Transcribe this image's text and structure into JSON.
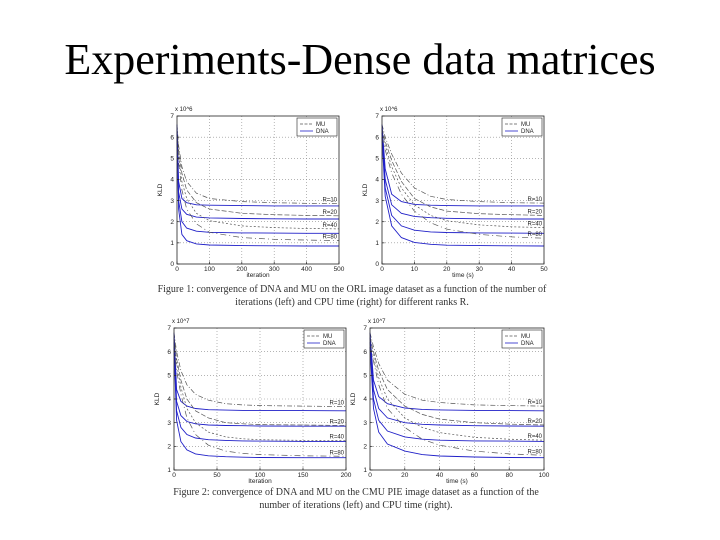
{
  "slide": {
    "title": "Experiments-Dense data matrices"
  },
  "captions": {
    "figure1": "Figure 1: convergence of DNA and MU on the ORL image dataset as a function of the number of iterations (left) and CPU time (right) for different ranks R.",
    "figure2": "Figure 2: convergence of DNA and MU on the CMU PIE image dataset as a function of the number of iterations (left) and CPU time (right)."
  },
  "colors": {
    "mu": "#555555",
    "dna": "#2020c8",
    "axis": "#222222",
    "grid": "#888888"
  },
  "chart_data": [
    {
      "id": "orl-iter",
      "type": "line",
      "dataset": "ORL",
      "xlabel": "iteration",
      "ylabel": "KLD",
      "yscale": "x 10^6",
      "xlim": [
        0,
        500
      ],
      "ylim": [
        0,
        7
      ],
      "xticks": [
        0,
        100,
        200,
        300,
        400,
        500
      ],
      "yticks": [
        0,
        1,
        2,
        3,
        4,
        5,
        6,
        7
      ],
      "legend": [
        "MU",
        "DNA"
      ],
      "ranks": [
        "R=10",
        "R=20",
        "R=40",
        "R=80"
      ],
      "series": [
        {
          "name": "MU R=10",
          "x": [
            0,
            5,
            15,
            30,
            60,
            100,
            200,
            300,
            400,
            500
          ],
          "y": [
            6.6,
            5.6,
            4.6,
            3.9,
            3.35,
            3.1,
            2.95,
            2.9,
            2.87,
            2.85
          ]
        },
        {
          "name": "DNA R=10",
          "x": [
            0,
            5,
            15,
            30,
            60,
            100,
            200,
            300,
            400,
            500
          ],
          "y": [
            6.6,
            3.9,
            3.1,
            2.9,
            2.8,
            2.78,
            2.76,
            2.75,
            2.75,
            2.75
          ]
        },
        {
          "name": "MU R=20",
          "x": [
            0,
            5,
            15,
            30,
            60,
            100,
            200,
            300,
            400,
            500
          ],
          "y": [
            6.4,
            5.4,
            4.3,
            3.5,
            2.9,
            2.6,
            2.4,
            2.33,
            2.3,
            2.28
          ]
        },
        {
          "name": "DNA R=20",
          "x": [
            0,
            5,
            15,
            30,
            60,
            100,
            200,
            300,
            400,
            500
          ],
          "y": [
            6.4,
            3.4,
            2.6,
            2.35,
            2.22,
            2.18,
            2.15,
            2.14,
            2.13,
            2.13
          ]
        },
        {
          "name": "MU R=40",
          "x": [
            0,
            5,
            15,
            30,
            60,
            100,
            200,
            300,
            400,
            500
          ],
          "y": [
            6.2,
            5.1,
            3.9,
            3.1,
            2.4,
            2.05,
            1.8,
            1.72,
            1.68,
            1.66
          ]
        },
        {
          "name": "DNA R=40",
          "x": [
            0,
            5,
            15,
            30,
            60,
            100,
            200,
            300,
            400,
            500
          ],
          "y": [
            6.2,
            3.0,
            2.0,
            1.7,
            1.55,
            1.5,
            1.47,
            1.46,
            1.45,
            1.45
          ]
        },
        {
          "name": "MU R=80",
          "x": [
            0,
            5,
            15,
            30,
            60,
            100,
            200,
            300,
            400,
            500
          ],
          "y": [
            6.0,
            4.8,
            3.5,
            2.6,
            1.9,
            1.5,
            1.25,
            1.17,
            1.13,
            1.11
          ]
        },
        {
          "name": "DNA R=80",
          "x": [
            0,
            5,
            15,
            30,
            60,
            100,
            200,
            300,
            400,
            500
          ],
          "y": [
            6.0,
            2.6,
            1.4,
            1.1,
            0.95,
            0.9,
            0.87,
            0.86,
            0.85,
            0.85
          ]
        }
      ]
    },
    {
      "id": "orl-time",
      "type": "line",
      "dataset": "ORL",
      "xlabel": "time (s)",
      "ylabel": "KLD",
      "yscale": "x 10^6",
      "xlim": [
        0,
        50
      ],
      "ylim": [
        0,
        7
      ],
      "xticks": [
        0,
        10,
        20,
        30,
        40,
        50
      ],
      "yticks": [
        0,
        1,
        2,
        3,
        4,
        5,
        6,
        7
      ],
      "legend": [
        "MU",
        "DNA"
      ],
      "ranks": [
        "R=10",
        "R=20",
        "R=40",
        "R=80"
      ],
      "series": [
        {
          "name": "MU R=10",
          "x": [
            0,
            1,
            3,
            6,
            10,
            15,
            20,
            30,
            40,
            50
          ],
          "y": [
            6.6,
            6.0,
            5.2,
            4.3,
            3.6,
            3.2,
            3.05,
            2.95,
            2.9,
            2.88
          ]
        },
        {
          "name": "DNA R=10",
          "x": [
            0,
            1,
            3,
            6,
            10,
            15,
            20,
            30,
            40,
            50
          ],
          "y": [
            6.6,
            4.5,
            3.3,
            2.95,
            2.82,
            2.78,
            2.76,
            2.75,
            2.75,
            2.75
          ]
        },
        {
          "name": "MU R=20",
          "x": [
            0,
            1,
            3,
            6,
            10,
            15,
            20,
            30,
            40,
            50
          ],
          "y": [
            6.4,
            5.8,
            4.9,
            3.9,
            3.1,
            2.7,
            2.5,
            2.38,
            2.33,
            2.3
          ]
        },
        {
          "name": "DNA R=20",
          "x": [
            0,
            1,
            3,
            6,
            10,
            15,
            20,
            30,
            40,
            50
          ],
          "y": [
            6.4,
            4.0,
            2.8,
            2.4,
            2.25,
            2.19,
            2.16,
            2.14,
            2.13,
            2.13
          ]
        },
        {
          "name": "MU R=40",
          "x": [
            0,
            1,
            3,
            6,
            10,
            15,
            20,
            30,
            40,
            50
          ],
          "y": [
            6.2,
            5.6,
            4.6,
            3.6,
            2.8,
            2.3,
            2.05,
            1.85,
            1.76,
            1.72
          ]
        },
        {
          "name": "DNA R=40",
          "x": [
            0,
            1,
            3,
            6,
            10,
            15,
            20,
            30,
            40,
            50
          ],
          "y": [
            6.2,
            3.6,
            2.3,
            1.8,
            1.6,
            1.52,
            1.49,
            1.47,
            1.46,
            1.45
          ]
        },
        {
          "name": "MU R=80",
          "x": [
            0,
            1,
            3,
            6,
            10,
            15,
            20,
            30,
            40,
            50
          ],
          "y": [
            6.0,
            5.4,
            4.3,
            3.3,
            2.5,
            1.95,
            1.65,
            1.4,
            1.28,
            1.22
          ]
        },
        {
          "name": "DNA R=80",
          "x": [
            0,
            1,
            3,
            6,
            10,
            15,
            20,
            30,
            40,
            50
          ],
          "y": [
            6.0,
            3.2,
            1.8,
            1.25,
            1.02,
            0.93,
            0.89,
            0.87,
            0.86,
            0.85
          ]
        }
      ]
    },
    {
      "id": "pie-iter",
      "type": "line",
      "dataset": "CMU PIE",
      "xlabel": "Iteration",
      "ylabel": "KLD",
      "yscale": "x 10^7",
      "xlim": [
        0,
        200
      ],
      "ylim": [
        1,
        7
      ],
      "xticks": [
        0,
        50,
        100,
        150,
        200
      ],
      "yticks": [
        1,
        2,
        3,
        4,
        5,
        6,
        7
      ],
      "legend": [
        "MU",
        "DNA"
      ],
      "ranks": [
        "R=10",
        "R=20",
        "R=40",
        "R=80"
      ],
      "series": [
        {
          "name": "MU R=10",
          "x": [
            0,
            3,
            8,
            15,
            25,
            40,
            60,
            80,
            100,
            150,
            200
          ],
          "y": [
            6.8,
            6.0,
            5.2,
            4.6,
            4.2,
            3.95,
            3.8,
            3.75,
            3.72,
            3.7,
            3.68
          ]
        },
        {
          "name": "DNA R=10",
          "x": [
            0,
            3,
            8,
            15,
            25,
            40,
            60,
            80,
            100,
            150,
            200
          ],
          "y": [
            6.8,
            4.4,
            3.9,
            3.7,
            3.6,
            3.55,
            3.53,
            3.52,
            3.52,
            3.51,
            3.5
          ]
        },
        {
          "name": "MU R=20",
          "x": [
            0,
            3,
            8,
            15,
            25,
            40,
            60,
            80,
            100,
            150,
            200
          ],
          "y": [
            6.6,
            5.7,
            4.8,
            4.0,
            3.5,
            3.2,
            3.0,
            2.95,
            2.92,
            2.9,
            2.88
          ]
        },
        {
          "name": "DNA R=20",
          "x": [
            0,
            3,
            8,
            15,
            25,
            40,
            60,
            80,
            100,
            150,
            200
          ],
          "y": [
            6.6,
            3.9,
            3.3,
            3.05,
            2.95,
            2.9,
            2.88,
            2.87,
            2.86,
            2.85,
            2.85
          ]
        },
        {
          "name": "MU R=40",
          "x": [
            0,
            3,
            8,
            15,
            25,
            40,
            60,
            80,
            100,
            150,
            200
          ],
          "y": [
            6.4,
            5.5,
            4.5,
            3.6,
            3.0,
            2.6,
            2.4,
            2.32,
            2.28,
            2.25,
            2.24
          ]
        },
        {
          "name": "DNA R=40",
          "x": [
            0,
            3,
            8,
            15,
            25,
            40,
            60,
            80,
            100,
            150,
            200
          ],
          "y": [
            6.4,
            3.5,
            2.8,
            2.5,
            2.35,
            2.28,
            2.25,
            2.23,
            2.22,
            2.21,
            2.2
          ]
        },
        {
          "name": "MU R=80",
          "x": [
            0,
            3,
            8,
            15,
            25,
            40,
            60,
            80,
            100,
            150,
            200
          ],
          "y": [
            6.2,
            5.2,
            4.2,
            3.2,
            2.5,
            2.05,
            1.8,
            1.7,
            1.65,
            1.6,
            1.58
          ]
        },
        {
          "name": "DNA R=80",
          "x": [
            0,
            3,
            8,
            15,
            25,
            40,
            60,
            80,
            100,
            150,
            200
          ],
          "y": [
            6.2,
            3.1,
            2.2,
            1.85,
            1.68,
            1.6,
            1.56,
            1.54,
            1.53,
            1.52,
            1.52
          ]
        }
      ]
    },
    {
      "id": "pie-time",
      "type": "line",
      "dataset": "CMU PIE",
      "xlabel": "time (s)",
      "ylabel": "KLD",
      "yscale": "x 10^7",
      "xlim": [
        0,
        100
      ],
      "ylim": [
        1,
        7
      ],
      "xticks": [
        0,
        20,
        40,
        60,
        80,
        100
      ],
      "yticks": [
        1,
        2,
        3,
        4,
        5,
        6,
        7
      ],
      "legend": [
        "MU",
        "DNA"
      ],
      "ranks": [
        "R=10",
        "R=20",
        "R=40",
        "R=80"
      ],
      "series": [
        {
          "name": "MU R=10",
          "x": [
            0,
            2,
            5,
            10,
            20,
            30,
            40,
            60,
            80,
            100
          ],
          "y": [
            6.8,
            6.2,
            5.5,
            4.8,
            4.2,
            3.95,
            3.85,
            3.75,
            3.72,
            3.7
          ]
        },
        {
          "name": "DNA R=10",
          "x": [
            0,
            2,
            5,
            10,
            20,
            30,
            40,
            60,
            80,
            100
          ],
          "y": [
            6.8,
            4.8,
            4.1,
            3.8,
            3.62,
            3.56,
            3.54,
            3.52,
            3.51,
            3.5
          ]
        },
        {
          "name": "MU R=20",
          "x": [
            0,
            2,
            5,
            10,
            20,
            30,
            40,
            60,
            80,
            100
          ],
          "y": [
            6.6,
            6.0,
            5.2,
            4.4,
            3.7,
            3.35,
            3.15,
            3.0,
            2.94,
            2.9
          ]
        },
        {
          "name": "DNA R=20",
          "x": [
            0,
            2,
            5,
            10,
            20,
            30,
            40,
            60,
            80,
            100
          ],
          "y": [
            6.6,
            4.4,
            3.6,
            3.2,
            3.0,
            2.93,
            2.9,
            2.87,
            2.86,
            2.85
          ]
        },
        {
          "name": "MU R=40",
          "x": [
            0,
            2,
            5,
            10,
            20,
            30,
            40,
            60,
            80,
            100
          ],
          "y": [
            6.4,
            5.8,
            4.9,
            4.0,
            3.2,
            2.8,
            2.58,
            2.38,
            2.3,
            2.26
          ]
        },
        {
          "name": "DNA R=40",
          "x": [
            0,
            2,
            5,
            10,
            20,
            30,
            40,
            60,
            80,
            100
          ],
          "y": [
            6.4,
            4.0,
            3.1,
            2.65,
            2.4,
            2.3,
            2.26,
            2.23,
            2.22,
            2.21
          ]
        },
        {
          "name": "MU R=80",
          "x": [
            0,
            2,
            5,
            10,
            20,
            30,
            40,
            60,
            80,
            100
          ],
          "y": [
            6.2,
            5.6,
            4.6,
            3.6,
            2.8,
            2.3,
            2.05,
            1.8,
            1.68,
            1.62
          ]
        },
        {
          "name": "DNA R=80",
          "x": [
            0,
            2,
            5,
            10,
            20,
            30,
            40,
            60,
            80,
            100
          ],
          "y": [
            6.2,
            3.6,
            2.6,
            2.1,
            1.8,
            1.65,
            1.59,
            1.55,
            1.53,
            1.52
          ]
        }
      ]
    }
  ]
}
